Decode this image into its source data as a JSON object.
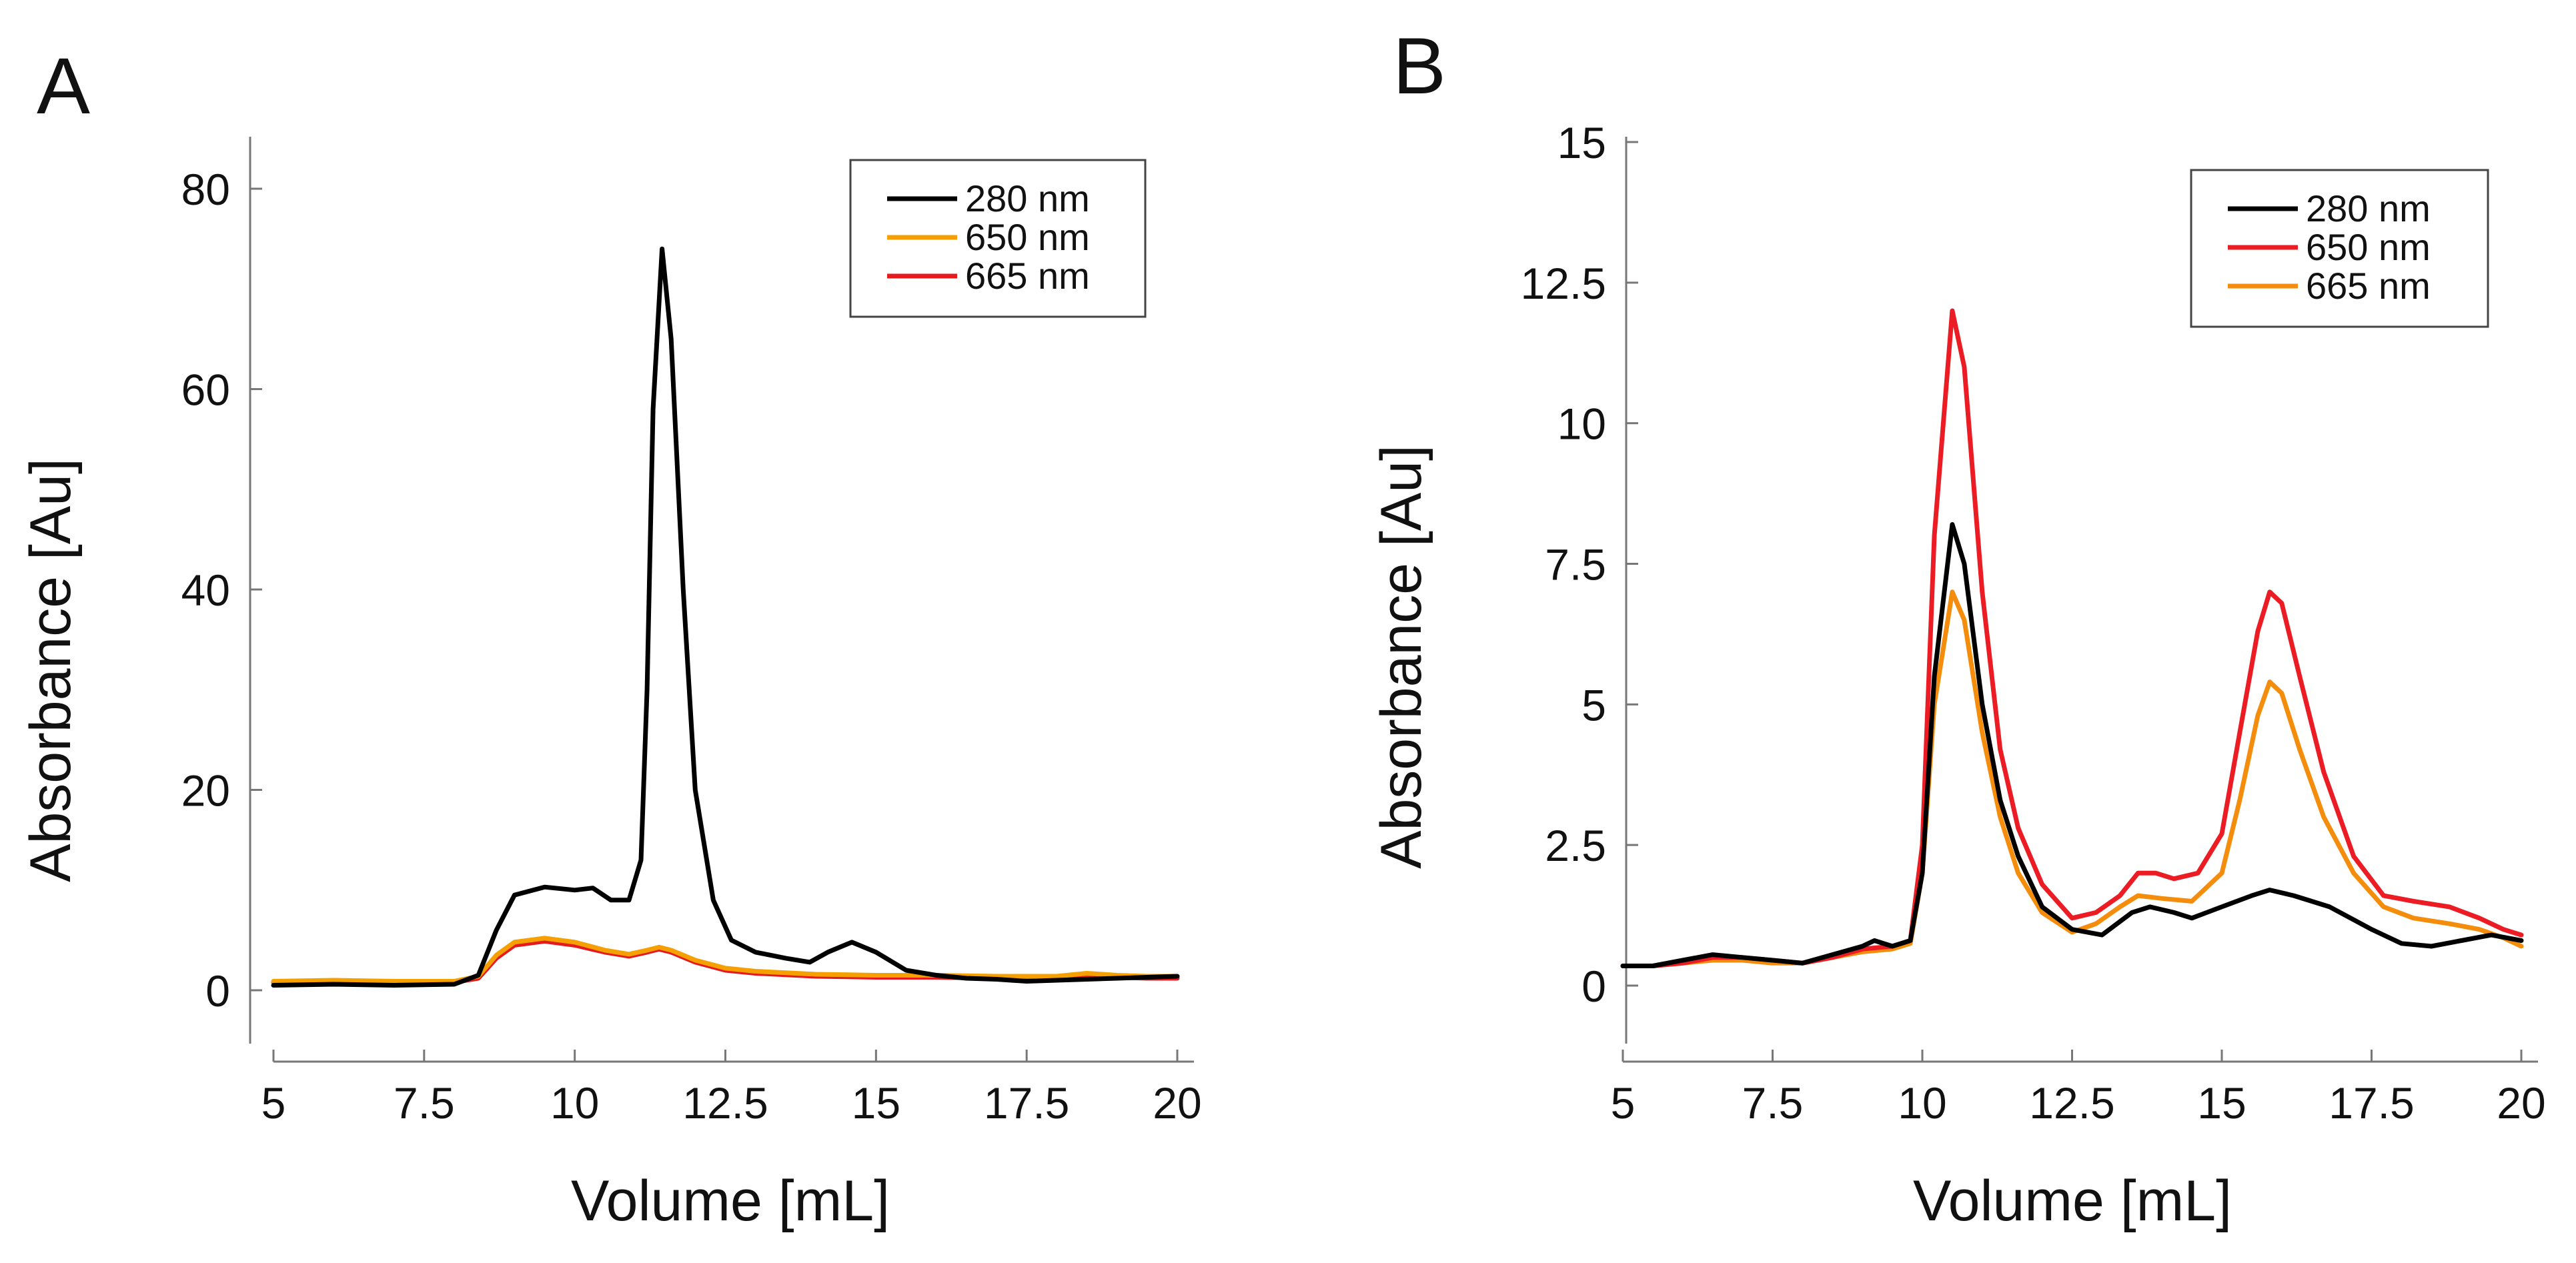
{
  "chart_data": [
    {
      "type": "line",
      "panel_label": "A",
      "xlabel": "Volume [mL]",
      "ylabel": "Absorbance [Au]",
      "xlim": [
        5,
        20.6
      ],
      "ylim": [
        -5,
        85
      ],
      "xticks": [
        5,
        7.5,
        10,
        12.5,
        15,
        17.5,
        20
      ],
      "xtick_labels": [
        "5",
        "7.5",
        "10",
        "12.5",
        "15",
        "17.5",
        "20"
      ],
      "yticks": [
        0,
        20,
        40,
        60,
        80
      ],
      "ytick_labels": [
        "0",
        "20",
        "40",
        "60",
        "80"
      ],
      "grid": false,
      "legend_position": "top-right",
      "series": [
        {
          "name": "280 nm",
          "color": "#000000",
          "points": [
            [
              5.0,
              0.5
            ],
            [
              6.0,
              0.6
            ],
            [
              7.0,
              0.5
            ],
            [
              8.0,
              0.6
            ],
            [
              8.4,
              1.5
            ],
            [
              8.7,
              6.0
            ],
            [
              9.0,
              9.5
            ],
            [
              9.5,
              10.3
            ],
            [
              10.0,
              10.0
            ],
            [
              10.3,
              10.2
            ],
            [
              10.6,
              9.0
            ],
            [
              10.9,
              9.0
            ],
            [
              11.1,
              13.0
            ],
            [
              11.2,
              30.0
            ],
            [
              11.3,
              58.0
            ],
            [
              11.45,
              74.0
            ],
            [
              11.6,
              65.0
            ],
            [
              11.8,
              40.0
            ],
            [
              12.0,
              20.0
            ],
            [
              12.3,
              9.0
            ],
            [
              12.6,
              5.0
            ],
            [
              13.0,
              3.8
            ],
            [
              13.5,
              3.2
            ],
            [
              13.9,
              2.8
            ],
            [
              14.2,
              3.8
            ],
            [
              14.6,
              4.8
            ],
            [
              15.0,
              3.8
            ],
            [
              15.5,
              2.0
            ],
            [
              16.0,
              1.5
            ],
            [
              16.5,
              1.2
            ],
            [
              17.0,
              1.1
            ],
            [
              17.5,
              0.9
            ],
            [
              18.0,
              1.0
            ],
            [
              18.5,
              1.1
            ],
            [
              19.0,
              1.2
            ],
            [
              19.5,
              1.3
            ],
            [
              20.0,
              1.4
            ]
          ]
        },
        {
          "name": "650 nm",
          "color": "#f5a000",
          "points": [
            [
              5.0,
              0.9
            ],
            [
              6.0,
              1.0
            ],
            [
              7.0,
              0.9
            ],
            [
              8.0,
              0.9
            ],
            [
              8.4,
              1.4
            ],
            [
              8.7,
              3.5
            ],
            [
              9.0,
              4.8
            ],
            [
              9.5,
              5.2
            ],
            [
              10.0,
              4.8
            ],
            [
              10.5,
              4.0
            ],
            [
              10.9,
              3.6
            ],
            [
              11.2,
              4.0
            ],
            [
              11.4,
              4.3
            ],
            [
              11.6,
              4.0
            ],
            [
              12.0,
              3.0
            ],
            [
              12.5,
              2.2
            ],
            [
              13.0,
              1.9
            ],
            [
              14.0,
              1.6
            ],
            [
              15.0,
              1.5
            ],
            [
              16.0,
              1.5
            ],
            [
              17.0,
              1.4
            ],
            [
              18.0,
              1.4
            ],
            [
              18.5,
              1.7
            ],
            [
              19.0,
              1.5
            ],
            [
              19.5,
              1.4
            ],
            [
              20.0,
              1.4
            ]
          ]
        },
        {
          "name": "665 nm",
          "color": "#e41a1c",
          "points": [
            [
              5.0,
              0.8
            ],
            [
              6.0,
              0.9
            ],
            [
              7.0,
              0.8
            ],
            [
              8.0,
              0.8
            ],
            [
              8.4,
              1.2
            ],
            [
              8.7,
              3.2
            ],
            [
              9.0,
              4.5
            ],
            [
              9.5,
              4.9
            ],
            [
              10.0,
              4.5
            ],
            [
              10.5,
              3.8
            ],
            [
              10.9,
              3.4
            ],
            [
              11.2,
              3.8
            ],
            [
              11.4,
              4.1
            ],
            [
              11.6,
              3.8
            ],
            [
              12.0,
              2.8
            ],
            [
              12.5,
              2.0
            ],
            [
              13.0,
              1.7
            ],
            [
              14.0,
              1.4
            ],
            [
              15.0,
              1.3
            ],
            [
              16.0,
              1.3
            ],
            [
              17.0,
              1.2
            ],
            [
              18.0,
              1.2
            ],
            [
              18.5,
              1.4
            ],
            [
              19.0,
              1.3
            ],
            [
              19.5,
              1.2
            ],
            [
              20.0,
              1.2
            ]
          ]
        }
      ]
    },
    {
      "type": "line",
      "panel_label": "B",
      "xlabel": "Volume [mL]",
      "ylabel": "Absorbance [Au]",
      "xlim": [
        5,
        20.1
      ],
      "ylim": [
        -1,
        15
      ],
      "xticks": [
        5,
        7.5,
        10,
        12.5,
        15,
        17.5,
        20
      ],
      "xtick_labels": [
        "5",
        "7.5",
        "10",
        "12.5",
        "15",
        "17.5",
        "20"
      ],
      "yticks": [
        0,
        2.5,
        5,
        7.5,
        10,
        12.5,
        15
      ],
      "ytick_labels": [
        "0",
        "2.5",
        "5",
        "7.5",
        "10",
        "12.5",
        "15"
      ],
      "grid": false,
      "legend_position": "top-right",
      "series": [
        {
          "name": "280 nm",
          "color": "#000000",
          "points": [
            [
              5.0,
              0.35
            ],
            [
              5.5,
              0.35
            ],
            [
              6.0,
              0.45
            ],
            [
              6.5,
              0.55
            ],
            [
              7.0,
              0.5
            ],
            [
              7.5,
              0.45
            ],
            [
              8.0,
              0.4
            ],
            [
              8.5,
              0.55
            ],
            [
              9.0,
              0.7
            ],
            [
              9.2,
              0.8
            ],
            [
              9.5,
              0.7
            ],
            [
              9.8,
              0.8
            ],
            [
              10.0,
              2.0
            ],
            [
              10.2,
              5.5
            ],
            [
              10.5,
              8.2
            ],
            [
              10.7,
              7.5
            ],
            [
              11.0,
              5.0
            ],
            [
              11.3,
              3.3
            ],
            [
              11.6,
              2.3
            ],
            [
              12.0,
              1.4
            ],
            [
              12.5,
              1.0
            ],
            [
              13.0,
              0.9
            ],
            [
              13.5,
              1.3
            ],
            [
              13.8,
              1.4
            ],
            [
              14.2,
              1.3
            ],
            [
              14.5,
              1.2
            ],
            [
              15.0,
              1.4
            ],
            [
              15.5,
              1.6
            ],
            [
              15.8,
              1.7
            ],
            [
              16.2,
              1.6
            ],
            [
              16.8,
              1.4
            ],
            [
              17.5,
              1.0
            ],
            [
              18.0,
              0.75
            ],
            [
              18.5,
              0.7
            ],
            [
              19.0,
              0.8
            ],
            [
              19.5,
              0.9
            ],
            [
              20.0,
              0.8
            ]
          ]
        },
        {
          "name": "650 nm",
          "color": "#ec1c24",
          "points": [
            [
              5.0,
              0.35
            ],
            [
              5.5,
              0.35
            ],
            [
              6.0,
              0.4
            ],
            [
              6.5,
              0.5
            ],
            [
              7.0,
              0.5
            ],
            [
              7.5,
              0.45
            ],
            [
              8.0,
              0.4
            ],
            [
              8.5,
              0.5
            ],
            [
              9.0,
              0.65
            ],
            [
              9.5,
              0.7
            ],
            [
              9.8,
              0.8
            ],
            [
              10.0,
              2.5
            ],
            [
              10.2,
              8.0
            ],
            [
              10.5,
              12.0
            ],
            [
              10.7,
              11.0
            ],
            [
              11.0,
              7.0
            ],
            [
              11.3,
              4.2
            ],
            [
              11.6,
              2.8
            ],
            [
              12.0,
              1.8
            ],
            [
              12.5,
              1.2
            ],
            [
              12.9,
              1.3
            ],
            [
              13.3,
              1.6
            ],
            [
              13.6,
              2.0
            ],
            [
              13.9,
              2.0
            ],
            [
              14.2,
              1.9
            ],
            [
              14.6,
              2.0
            ],
            [
              15.0,
              2.7
            ],
            [
              15.3,
              4.5
            ],
            [
              15.6,
              6.3
            ],
            [
              15.8,
              7.0
            ],
            [
              16.0,
              6.8
            ],
            [
              16.3,
              5.5
            ],
            [
              16.7,
              3.8
            ],
            [
              17.2,
              2.3
            ],
            [
              17.7,
              1.6
            ],
            [
              18.2,
              1.5
            ],
            [
              18.8,
              1.4
            ],
            [
              19.3,
              1.2
            ],
            [
              19.7,
              1.0
            ],
            [
              20.0,
              0.9
            ]
          ]
        },
        {
          "name": "665 nm",
          "color": "#f58d0c",
          "points": [
            [
              5.0,
              0.35
            ],
            [
              5.5,
              0.35
            ],
            [
              6.0,
              0.4
            ],
            [
              6.5,
              0.45
            ],
            [
              7.0,
              0.45
            ],
            [
              7.5,
              0.4
            ],
            [
              8.0,
              0.4
            ],
            [
              8.5,
              0.5
            ],
            [
              9.0,
              0.6
            ],
            [
              9.5,
              0.65
            ],
            [
              9.8,
              0.75
            ],
            [
              10.0,
              2.0
            ],
            [
              10.2,
              5.0
            ],
            [
              10.5,
              7.0
            ],
            [
              10.7,
              6.5
            ],
            [
              11.0,
              4.5
            ],
            [
              11.3,
              3.0
            ],
            [
              11.6,
              2.0
            ],
            [
              12.0,
              1.3
            ],
            [
              12.5,
              0.95
            ],
            [
              12.9,
              1.1
            ],
            [
              13.3,
              1.4
            ],
            [
              13.6,
              1.6
            ],
            [
              14.0,
              1.55
            ],
            [
              14.5,
              1.5
            ],
            [
              15.0,
              2.0
            ],
            [
              15.3,
              3.3
            ],
            [
              15.6,
              4.8
            ],
            [
              15.8,
              5.4
            ],
            [
              16.0,
              5.2
            ],
            [
              16.3,
              4.2
            ],
            [
              16.7,
              3.0
            ],
            [
              17.2,
              2.0
            ],
            [
              17.7,
              1.4
            ],
            [
              18.2,
              1.2
            ],
            [
              18.8,
              1.1
            ],
            [
              19.3,
              1.0
            ],
            [
              19.7,
              0.85
            ],
            [
              20.0,
              0.7
            ]
          ]
        }
      ]
    }
  ]
}
